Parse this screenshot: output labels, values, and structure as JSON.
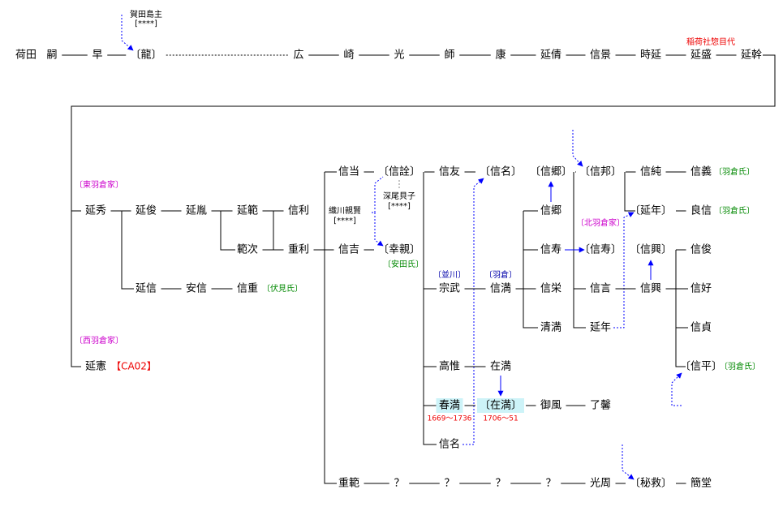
{
  "nodes": [
    {
      "label": "荷田"
    },
    {
      "label": "嗣"
    },
    {
      "label": "早"
    },
    {
      "label": "〔龍〕"
    },
    {
      "label": "広"
    },
    {
      "label": "崎"
    },
    {
      "label": "光"
    },
    {
      "label": "師"
    },
    {
      "label": "康"
    },
    {
      "label": "延倩"
    },
    {
      "label": "信景"
    },
    {
      "label": "時延"
    },
    {
      "label": "延盛"
    },
    {
      "label": "延幹"
    },
    {
      "label": "延秀"
    },
    {
      "label": "延俊"
    },
    {
      "label": "延胤"
    },
    {
      "label": "延範"
    },
    {
      "label": "信利"
    },
    {
      "label": "範次"
    },
    {
      "label": "重利"
    },
    {
      "label": "信吉"
    },
    {
      "label": "〔幸親〕"
    },
    {
      "label": "延信"
    },
    {
      "label": "安信"
    },
    {
      "label": "信重"
    },
    {
      "label": "延憲"
    },
    {
      "label": "信当"
    },
    {
      "label": "〔信詮〕"
    },
    {
      "label": "信友"
    },
    {
      "label": "〔信名〕"
    },
    {
      "label": "〔信郷〕"
    },
    {
      "label": "〔信邦〕"
    },
    {
      "label": "信純"
    },
    {
      "label": "信義"
    },
    {
      "label": "信郷"
    },
    {
      "label": "〔延年〕"
    },
    {
      "label": "良信"
    },
    {
      "label": "信寿"
    },
    {
      "label": "〔信寿〕"
    },
    {
      "label": "〔信興〕"
    },
    {
      "label": "信俊"
    },
    {
      "label": "宗武"
    },
    {
      "label": "信満"
    },
    {
      "label": "信栄"
    },
    {
      "label": "信言"
    },
    {
      "label": "信興"
    },
    {
      "label": "信好"
    },
    {
      "label": "清満"
    },
    {
      "label": "延年"
    },
    {
      "label": "信貞"
    },
    {
      "label": "高惟"
    },
    {
      "label": "在満"
    },
    {
      "label": "〔信平〕"
    },
    {
      "label": "春満"
    },
    {
      "label": "〔在満〕"
    },
    {
      "label": "御風"
    },
    {
      "label": "了馨"
    },
    {
      "label": "信名"
    },
    {
      "label": "重範"
    },
    {
      "label": "？"
    },
    {
      "label": "？"
    },
    {
      "label": "？"
    },
    {
      "label": "？"
    },
    {
      "label": "光周"
    },
    {
      "label": "〔秘救〕"
    },
    {
      "label": "簡堂"
    }
  ],
  "annotations": [
    {
      "text": "賀田島主"
    },
    {
      "text": "[****]"
    },
    {
      "text": "稲荷社惣目代"
    },
    {
      "text": "〔東羽倉家〕"
    },
    {
      "text": "〔伏見氏〕"
    },
    {
      "text": "〔西羽倉家〕"
    },
    {
      "text": "【CA02】"
    },
    {
      "text": "織川親賢"
    },
    {
      "text": "[****]"
    },
    {
      "text": "深尾貝子"
    },
    {
      "text": "[****]"
    },
    {
      "text": "〔北羽倉家〕"
    },
    {
      "text": "〔安田氏〕"
    },
    {
      "text": "〔羽倉氏〕"
    },
    {
      "text": "〔羽倉氏〕"
    },
    {
      "text": "〔羽倉氏〕"
    },
    {
      "text": "〔並川〕"
    },
    {
      "text": "〔羽倉〕"
    },
    {
      "text": "1669～1736"
    },
    {
      "text": "1706～51"
    }
  ]
}
